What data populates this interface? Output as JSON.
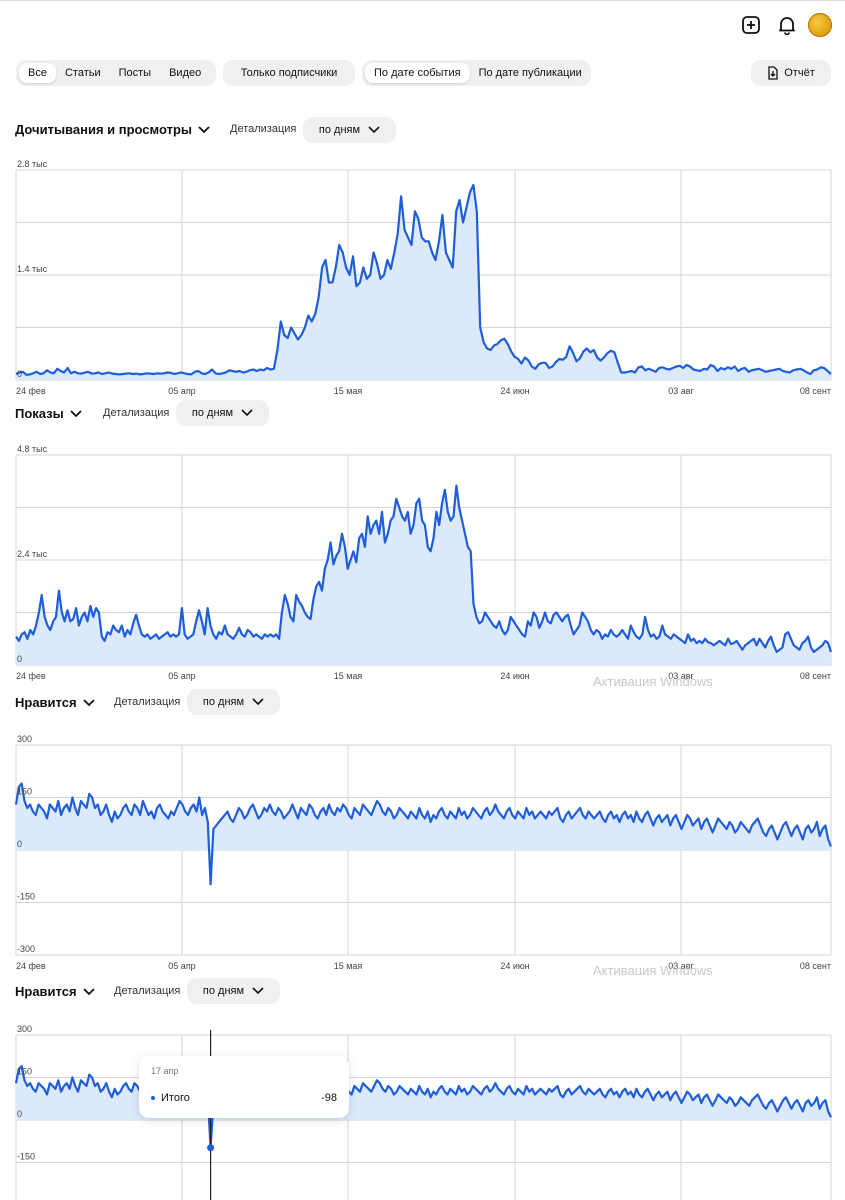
{
  "header": {
    "add_icon": "plus-square-icon",
    "bell_icon": "bell-icon",
    "avatar_icon": "avatar"
  },
  "filters": {
    "content_types": [
      {
        "label": "Все",
        "active": true
      },
      {
        "label": "Статьи",
        "active": false
      },
      {
        "label": "Посты",
        "active": false
      },
      {
        "label": "Видео",
        "active": false
      }
    ],
    "subscribers_label": "Только подписчики",
    "date_modes": [
      {
        "label": "По дате события",
        "active": true
      },
      {
        "label": "По дате публикации",
        "active": false
      }
    ],
    "report_label": "Отчёт"
  },
  "colors": {
    "line": "#1f5ed8",
    "fill": "#dce9fb",
    "grid": "#d4d4d4",
    "axis_text": "#444444"
  },
  "detail_label": "Детализация",
  "x_tick_labels": [
    "24 фев",
    "05 апр",
    "15 мая",
    "24 июн",
    "03 авг",
    "08 сент"
  ],
  "watermark": "Активация Windows",
  "tooltip": {
    "date": "17 апр",
    "label": "Итого",
    "value": "-98"
  },
  "chart_data": [
    {
      "type": "area",
      "title": "Дочитывания и просмотры",
      "detail": "по дням",
      "ylim": [
        0,
        2800
      ],
      "y_ticks": [
        {
          "v": 0,
          "label": "0"
        },
        {
          "v": 1400,
          "label": "1.4 тыс"
        },
        {
          "v": 2800,
          "label": "2.8 тыс"
        }
      ],
      "values": [
        80,
        100,
        110,
        70,
        75,
        90,
        110,
        80,
        90,
        130,
        100,
        90,
        150,
        120,
        100,
        160,
        90,
        110,
        90,
        85,
        100,
        110,
        85,
        90,
        100,
        80,
        90,
        100,
        85,
        80,
        75,
        80,
        85,
        90,
        80,
        85,
        75,
        80,
        90,
        85,
        80,
        90,
        85,
        90,
        100,
        95,
        80,
        90,
        100,
        90,
        80,
        75,
        110,
        120,
        90,
        80,
        100,
        140,
        90,
        80,
        90,
        100,
        130,
        120,
        110,
        120,
        100,
        110,
        130,
        140,
        120,
        140,
        130,
        160,
        140,
        150,
        400,
        780,
        600,
        560,
        700,
        620,
        540,
        600,
        700,
        860,
        780,
        880,
        1100,
        1500,
        1600,
        1300,
        1300,
        1500,
        1800,
        1700,
        1500,
        1400,
        1650,
        1250,
        1300,
        1500,
        1350,
        1400,
        1700,
        1550,
        1350,
        1400,
        1600,
        1480,
        1700,
        1950,
        2450,
        2000,
        1900,
        1800,
        2250,
        2150,
        1900,
        1850,
        1850,
        1700,
        1600,
        1850,
        2200,
        1700,
        1600,
        1500,
        2250,
        2400,
        2100,
        2300,
        2500,
        2600,
        2250,
        700,
        500,
        420,
        400,
        460,
        480,
        530,
        550,
        480,
        380,
        310,
        280,
        220,
        300,
        260,
        180,
        150,
        210,
        230,
        230,
        160,
        180,
        240,
        280,
        270,
        310,
        450,
        360,
        250,
        290,
        380,
        420,
        370,
        400,
        300,
        260,
        300,
        360,
        390,
        370,
        230,
        100,
        100,
        110,
        120,
        100,
        170,
        180,
        130,
        150,
        130,
        110,
        160,
        170,
        150,
        140,
        160,
        180,
        190,
        160,
        200,
        180,
        140,
        130,
        120,
        150,
        140,
        200,
        180,
        120,
        160,
        140,
        170,
        150,
        180,
        120,
        150,
        160,
        110,
        130,
        140,
        150,
        130,
        110,
        120,
        130,
        140,
        150,
        120,
        110,
        100,
        130,
        140,
        150,
        130,
        100,
        80,
        130,
        140,
        170,
        160,
        120,
        80
      ]
    },
    {
      "type": "area",
      "title": "Показы",
      "detail": "по дням",
      "ylim": [
        0,
        4800
      ],
      "y_ticks": [
        {
          "v": 0,
          "label": "0"
        },
        {
          "v": 2400,
          "label": "2.4 тыс"
        },
        {
          "v": 4800,
          "label": "4.8 тыс"
        }
      ],
      "values": [
        650,
        550,
        700,
        750,
        600,
        800,
        700,
        900,
        1200,
        1600,
        1100,
        900,
        800,
        1000,
        1100,
        1700,
        1200,
        1000,
        1250,
        1000,
        1050,
        1300,
        900,
        1100,
        1200,
        1000,
        1350,
        1100,
        1300,
        1200,
        650,
        550,
        750,
        700,
        900,
        800,
        750,
        900,
        650,
        800,
        700,
        950,
        1150,
        900,
        700,
        650,
        700,
        600,
        650,
        700,
        600,
        650,
        700,
        750,
        650,
        700,
        650,
        700,
        1300,
        700,
        600,
        650,
        700,
        1000,
        1250,
        1000,
        700,
        1300,
        900,
        700,
        600,
        750,
        700,
        900,
        700,
        650,
        600,
        700,
        850,
        700,
        650,
        800,
        750,
        650,
        700,
        650,
        600,
        700,
        650,
        700,
        650,
        700,
        600,
        1200,
        1600,
        1400,
        1100,
        1000,
        1600,
        1450,
        1350,
        1200,
        1100,
        1050,
        1500,
        1800,
        1900,
        1700,
        2200,
        2400,
        2800,
        2300,
        2500,
        2600,
        3000,
        2700,
        2200,
        2400,
        2600,
        2350,
        2900,
        3000,
        2700,
        3400,
        3000,
        3200,
        3300,
        3000,
        3500,
        2800,
        3000,
        3300,
        3400,
        3800,
        3600,
        3400,
        3300,
        3500,
        3000,
        3200,
        3700,
        3800,
        3300,
        3200,
        2700,
        2600,
        2900,
        3500,
        3200,
        3700,
        4000,
        3500,
        3300,
        3400,
        4100,
        3600,
        3300,
        3000,
        2700,
        2600,
        1400,
        1100,
        950,
        1000,
        1200,
        1100,
        1000,
        900,
        850,
        1000,
        800,
        700,
        800,
        1100,
        1000,
        900,
        800,
        700,
        650,
        1000,
        900,
        1200,
        1100,
        850,
        1000,
        1200,
        1000,
        950,
        1150,
        1200,
        1100,
        1000,
        1100,
        1150,
        900,
        700,
        800,
        900,
        1200,
        1100,
        1000,
        800,
        700,
        800,
        750,
        600,
        700,
        650,
        800,
        700,
        650,
        700,
        800,
        700,
        600,
        900,
        750,
        650,
        600,
        700,
        1100,
        800,
        650,
        700,
        600,
        650,
        900,
        700,
        650,
        600,
        700,
        650,
        600,
        550,
        500,
        700,
        550,
        600,
        500,
        550,
        500,
        600,
        520,
        500,
        450,
        500,
        550,
        500,
        450,
        600,
        480,
        500,
        550,
        450,
        350,
        450,
        500,
        550,
        600,
        450,
        600,
        500,
        400,
        550,
        650,
        450,
        300,
        350,
        400,
        700,
        750,
        600,
        450,
        400,
        350,
        500,
        550,
        650,
        400,
        300,
        350,
        400,
        450,
        550,
        500,
        300
      ]
    },
    {
      "type": "area",
      "title": "Нравится",
      "detail": "по дням",
      "ylim": [
        -300,
        300
      ],
      "y_ticks": [
        {
          "v": -300,
          "label": "-300"
        },
        {
          "v": -150,
          "label": "-150"
        },
        {
          "v": 0,
          "label": "0"
        },
        {
          "v": 150,
          "label": "150"
        },
        {
          "v": 300,
          "label": "300"
        }
      ],
      "values": [
        130,
        180,
        190,
        140,
        120,
        130,
        110,
        100,
        130,
        120,
        110,
        90,
        130,
        120,
        110,
        140,
        100,
        120,
        130,
        110,
        150,
        120,
        100,
        140,
        130,
        120,
        160,
        150,
        120,
        130,
        100,
        110,
        130,
        100,
        80,
        110,
        90,
        100,
        120,
        130,
        110,
        100,
        130,
        120,
        100,
        140,
        120,
        100,
        110,
        90,
        120,
        130,
        110,
        100,
        90,
        110,
        100,
        120,
        140,
        130,
        110,
        100,
        120,
        130,
        110,
        150,
        100,
        120,
        80,
        -98,
        60,
        70,
        80,
        90,
        100,
        110,
        90,
        80,
        100,
        120,
        110,
        90,
        100,
        120,
        130,
        110,
        90,
        100,
        120,
        110,
        130,
        110,
        100,
        120,
        110,
        90,
        100,
        110,
        130,
        110,
        90,
        120,
        110,
        100,
        130,
        120,
        100,
        90,
        110,
        120,
        100,
        130,
        110,
        100,
        120,
        110,
        130,
        120,
        100,
        90,
        120,
        110,
        100,
        130,
        120,
        110,
        100,
        120,
        140,
        130,
        110,
        100,
        120,
        110,
        90,
        100,
        120,
        110,
        100,
        90,
        110,
        100,
        90,
        120,
        100,
        90,
        110,
        80,
        100,
        90,
        110,
        120,
        100,
        90,
        110,
        100,
        90,
        120,
        100,
        110,
        90,
        100,
        120,
        110,
        100,
        90,
        110,
        120,
        100,
        110,
        130,
        110,
        100,
        90,
        110,
        120,
        100,
        90,
        110,
        100,
        90,
        120,
        100,
        110,
        90,
        100,
        110,
        100,
        90,
        110,
        100,
        110,
        120,
        90,
        80,
        100,
        110,
        90,
        100,
        110,
        120,
        100,
        90,
        110,
        100,
        90,
        100,
        110,
        90,
        80,
        100,
        110,
        90,
        100,
        80,
        100,
        110,
        90,
        100,
        80,
        110,
        90,
        80,
        100,
        110,
        90,
        70,
        90,
        100,
        80,
        90,
        100,
        70,
        90,
        100,
        80,
        60,
        80,
        100,
        90,
        70,
        80,
        90,
        60,
        80,
        90,
        70,
        50,
        70,
        90,
        80,
        70,
        60,
        80,
        70,
        50,
        60,
        80,
        70,
        60,
        50,
        70,
        80,
        90,
        70,
        50,
        40,
        60,
        70,
        50,
        30,
        50,
        70,
        80,
        60,
        40,
        60,
        70,
        50,
        30,
        60,
        70,
        50,
        60,
        80,
        40,
        60,
        70,
        30,
        10
      ]
    },
    {
      "type": "area",
      "title": "Нравится",
      "detail": "по дням",
      "ylim": [
        -300,
        300
      ],
      "y_ticks": [
        {
          "v": -150,
          "label": "-150"
        },
        {
          "v": 0,
          "label": "0"
        },
        {
          "v": 150,
          "label": "150"
        },
        {
          "v": 300,
          "label": "300"
        }
      ],
      "values": [
        130,
        180,
        190,
        140,
        120,
        130,
        110,
        100,
        130,
        120,
        110,
        90,
        130,
        120,
        110,
        140,
        100,
        120,
        130,
        110,
        150,
        120,
        100,
        140,
        130,
        120,
        160,
        150,
        120,
        130,
        100,
        110,
        130,
        100,
        80,
        110,
        90,
        100,
        120,
        130,
        110,
        100,
        130,
        120,
        100,
        140,
        120,
        100,
        110,
        90,
        120,
        130,
        110,
        100,
        90,
        110,
        100,
        120,
        140,
        130,
        110,
        100,
        120,
        130,
        110,
        150,
        100,
        120,
        80,
        -98,
        60,
        70,
        80,
        90,
        100,
        110,
        90,
        80,
        100,
        120,
        110,
        90,
        100,
        120,
        130,
        110,
        90,
        100,
        120,
        110,
        130,
        110,
        100,
        120,
        110,
        90,
        100,
        110,
        130,
        110,
        90,
        120,
        110,
        100,
        130,
        120,
        100,
        90,
        110,
        120,
        100,
        130,
        110,
        100,
        120,
        110,
        130,
        120,
        100,
        90,
        120,
        110,
        100,
        130,
        120,
        110,
        100,
        120,
        140,
        130,
        110,
        100,
        120,
        110,
        90,
        100,
        120,
        110,
        100,
        90,
        110,
        100,
        90,
        120,
        100,
        90,
        110,
        80,
        100,
        90,
        110,
        120,
        100,
        90,
        110,
        100,
        90,
        120,
        100,
        110,
        90,
        100,
        120,
        110,
        100,
        90,
        110,
        120,
        100,
        110,
        130,
        110,
        100,
        90,
        110,
        120,
        100,
        90,
        110,
        100,
        90,
        120,
        100,
        110,
        90,
        100,
        110,
        100,
        90,
        110,
        100,
        110,
        120,
        90,
        80,
        100,
        110,
        90,
        100,
        110,
        120,
        100,
        90,
        110,
        100,
        90,
        100,
        110,
        90,
        80,
        100,
        110,
        90,
        100,
        80,
        100,
        110,
        90,
        100,
        80,
        110,
        90,
        80,
        100,
        110,
        90,
        70,
        90,
        100,
        80,
        90,
        100,
        70,
        90,
        100,
        80,
        60,
        80,
        100,
        90,
        70,
        80,
        90,
        60,
        80,
        90,
        70,
        50,
        70,
        90,
        80,
        70,
        60,
        80,
        70,
        50,
        60,
        80,
        70,
        60,
        50,
        70,
        80,
        90,
        70,
        50,
        40,
        60,
        70,
        50,
        30,
        50,
        70,
        80,
        60,
        40,
        60,
        70,
        50,
        30,
        60,
        70,
        50,
        60,
        80,
        40,
        60,
        70,
        30,
        10
      ]
    }
  ]
}
